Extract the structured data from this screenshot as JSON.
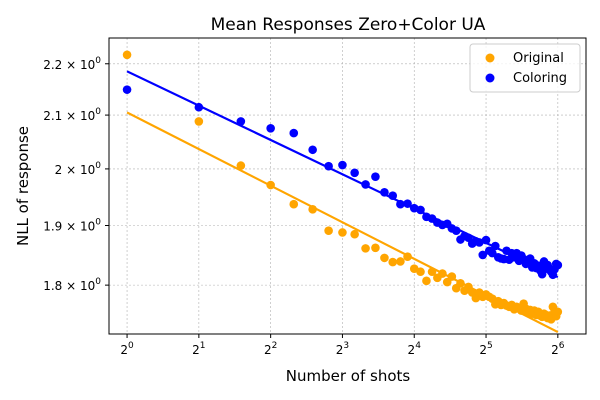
{
  "chart_data": {
    "type": "scatter",
    "title": "Mean Responses Zero+Color UA",
    "xlabel": "Number of shots",
    "ylabel": "NLL of response",
    "xscale": "log2",
    "yscale": "log",
    "xlim": [
      0.84,
      84
    ],
    "ylim": [
      1.722,
      2.252
    ],
    "grid": true,
    "legend_position": "top-right",
    "x_ticks": [
      {
        "value": 1,
        "base": "2",
        "exp": "0"
      },
      {
        "value": 2,
        "base": "2",
        "exp": "1"
      },
      {
        "value": 4,
        "base": "2",
        "exp": "2"
      },
      {
        "value": 8,
        "base": "2",
        "exp": "3"
      },
      {
        "value": 16,
        "base": "2",
        "exp": "4"
      },
      {
        "value": 32,
        "base": "2",
        "exp": "5"
      },
      {
        "value": 64,
        "base": "2",
        "exp": "6"
      }
    ],
    "y_ticks_major": [
      {
        "value": 2.0,
        "mant": "2",
        "times": "×",
        "base": "10",
        "exp": "0"
      }
    ],
    "y_ticks_minor": [
      {
        "value": 1.8,
        "mant": "1.8",
        "times": "×",
        "base": "10",
        "exp": "0"
      },
      {
        "value": 1.9,
        "mant": "1.9",
        "times": "×",
        "base": "10",
        "exp": "0"
      },
      {
        "value": 2.1,
        "mant": "2.1",
        "times": "×",
        "base": "10",
        "exp": "0"
      },
      {
        "value": 2.2,
        "mant": "2.2",
        "times": "×",
        "base": "10",
        "exp": "0"
      }
    ],
    "series": [
      {
        "name": "Original",
        "color": "#ffa500",
        "x": [
          1,
          2,
          3,
          4,
          5,
          6,
          7,
          8,
          9,
          10,
          11,
          12,
          13,
          14,
          15,
          16,
          17,
          18,
          19,
          20,
          21,
          22,
          23,
          24,
          25,
          26,
          27,
          28,
          29,
          30,
          31,
          32,
          33,
          34,
          35,
          36,
          37,
          38,
          39,
          40,
          41,
          42,
          43,
          44,
          45,
          46,
          47,
          48,
          49,
          50,
          51,
          52,
          53,
          54,
          55,
          56,
          57,
          58,
          59,
          60,
          61,
          62,
          63,
          64
        ],
        "y": [
          2.218,
          2.088,
          2.006,
          1.971,
          1.937,
          1.928,
          1.891,
          1.888,
          1.885,
          1.861,
          1.862,
          1.845,
          1.838,
          1.839,
          1.847,
          1.827,
          1.822,
          1.807,
          1.822,
          1.812,
          1.819,
          1.805,
          1.814,
          1.795,
          1.803,
          1.791,
          1.797,
          1.788,
          1.779,
          1.788,
          1.781,
          1.785,
          1.781,
          1.778,
          1.769,
          1.774,
          1.768,
          1.771,
          1.767,
          1.765,
          1.768,
          1.761,
          1.765,
          1.763,
          1.759,
          1.77,
          1.762,
          1.756,
          1.76,
          1.754,
          1.759,
          1.752,
          1.757,
          1.751,
          1.749,
          1.754,
          1.752,
          1.747,
          1.751,
          1.745,
          1.765,
          1.758,
          1.75,
          1.757
        ],
        "fit": {
          "x": [
            1,
            64
          ],
          "y": [
            2.105,
            1.725
          ]
        }
      },
      {
        "name": "Coloring",
        "color": "#0000ff",
        "x": [
          1,
          2,
          3,
          4,
          5,
          6,
          7,
          8,
          9,
          10,
          11,
          12,
          13,
          14,
          15,
          16,
          17,
          18,
          19,
          20,
          21,
          22,
          23,
          24,
          25,
          26,
          27,
          28,
          29,
          30,
          31,
          32,
          33,
          34,
          35,
          36,
          37,
          38,
          39,
          40,
          41,
          42,
          43,
          44,
          45,
          46,
          47,
          48,
          49,
          50,
          51,
          52,
          53,
          54,
          55,
          56,
          57,
          58,
          59,
          60,
          61,
          62,
          63,
          64
        ],
        "y": [
          2.149,
          2.115,
          2.088,
          2.075,
          2.066,
          2.035,
          2.005,
          2.007,
          1.993,
          1.972,
          1.986,
          1.958,
          1.952,
          1.937,
          1.938,
          1.93,
          1.927,
          1.915,
          1.912,
          1.905,
          1.901,
          1.903,
          1.895,
          1.891,
          1.876,
          1.882,
          1.879,
          1.869,
          1.873,
          1.871,
          1.85,
          1.875,
          1.857,
          1.853,
          1.865,
          1.846,
          1.844,
          1.843,
          1.857,
          1.842,
          1.853,
          1.846,
          1.853,
          1.84,
          1.849,
          1.843,
          1.835,
          1.838,
          1.844,
          1.829,
          1.836,
          1.828,
          1.832,
          1.824,
          1.818,
          1.839,
          1.829,
          1.833,
          1.827,
          1.822,
          1.817,
          1.826,
          1.835,
          1.833
        ],
        "fit": {
          "x": [
            1,
            64
          ],
          "y": [
            2.185,
            1.813
          ]
        }
      }
    ]
  }
}
